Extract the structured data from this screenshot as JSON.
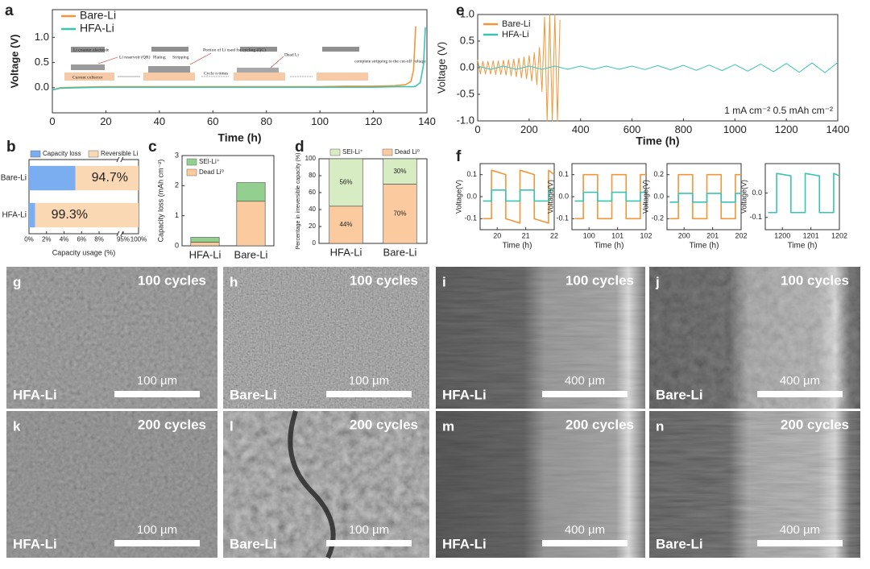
{
  "chart_data": [
    {
      "panel": "a",
      "type": "line",
      "xlabel": "Time (h)",
      "ylabel": "Voltage (V)",
      "x": [
        0,
        3,
        10,
        20,
        30,
        40,
        50,
        60,
        70,
        80,
        90,
        100,
        110,
        120,
        128,
        132,
        134,
        135,
        135.8,
        137.5,
        138.7,
        139.4
      ],
      "xlim": [
        0,
        140
      ],
      "xticks": [
        0,
        20,
        40,
        60,
        80,
        100,
        120,
        140
      ],
      "ylim": [
        -0.5,
        1.55
      ],
      "yticks": [
        {
          "value": 0,
          "label": "0.0"
        },
        {
          "value": 0.5,
          "label": "0.5"
        },
        {
          "value": 1,
          "label": "1.0"
        }
      ],
      "legend": "upper left",
      "series": [
        {
          "name": "Bare-Li",
          "color": "#f2963a",
          "values": [
            -0.05,
            0.0,
            0.01,
            0.02,
            0.02,
            0.02,
            0.02,
            0.02,
            0.02,
            0.02,
            0.02,
            0.02,
            0.03,
            0.03,
            0.04,
            0.06,
            0.12,
            0.35,
            1.22,
            null,
            null,
            null
          ]
        },
        {
          "name": "HFA-Li",
          "color": "#3cc4b2",
          "values": [
            -0.04,
            -0.01,
            0.0,
            0.01,
            0.01,
            0.01,
            0.01,
            0.01,
            0.01,
            0.01,
            0.01,
            0.01,
            0.01,
            0.01,
            0.02,
            0.02,
            0.02,
            0.02,
            0.03,
            0.1,
            0.45,
            1.2
          ]
        }
      ],
      "inset_labels": [
        "Li counter electrode",
        "Li reservoir (QR)",
        "Current collector",
        "Plating",
        "Stripping",
        "Portion of Li used for cycling (QC)",
        "Cycle n times",
        "Dead Li",
        "complete stripping to the cut-off voltage"
      ]
    },
    {
      "panel": "b",
      "type": "bar",
      "orientation": "horizontal",
      "stacked": true,
      "xlabel": "Capacity usage (%)",
      "categories": [
        "Bare-Li",
        "HFA-Li"
      ],
      "xlim": [
        0,
        100
      ],
      "axis_break": [
        10,
        95
      ],
      "xticks": [
        {
          "value": 0,
          "label": "0%"
        },
        {
          "value": 2,
          "label": "2%"
        },
        {
          "value": 4,
          "label": "4%"
        },
        {
          "value": 6,
          "label": "6%"
        },
        {
          "value": 8,
          "label": "8%"
        },
        {
          "value": 95,
          "label": "95%"
        },
        {
          "value": 100,
          "label": "100%"
        }
      ],
      "series": [
        {
          "name": "Capacity loss",
          "color": "#7aaef0",
          "values": [
            5.3,
            0.7
          ]
        },
        {
          "name": "Reversible Li",
          "color": "#fbd8b4",
          "values": [
            94.7,
            99.3
          ],
          "value_labels": [
            "94.7%",
            "99.3%"
          ]
        }
      ]
    },
    {
      "panel": "c",
      "type": "bar",
      "stacked": true,
      "ylabel": "Capacity loss (mAh cm⁻²)",
      "categories": [
        "HFA-Li",
        "Bare-Li"
      ],
      "ylim": [
        0,
        3
      ],
      "yticks": [
        0,
        1,
        2,
        3
      ],
      "series": [
        {
          "name": "Dead Li⁰",
          "color": "#fbcb9f",
          "values": [
            0.12,
            1.48
          ]
        },
        {
          "name": "SEI-Li⁺",
          "color": "#93cf8e",
          "values": [
            0.16,
            0.62
          ]
        }
      ]
    },
    {
      "panel": "d",
      "type": "bar",
      "stacked": true,
      "ylabel": "Percentage in irreversible capacity (%)",
      "categories": [
        "HFA-Li",
        "Bare-Li"
      ],
      "ylim": [
        0,
        100
      ],
      "yticks": [
        0,
        20,
        40,
        60,
        80,
        100
      ],
      "series": [
        {
          "name": "Dead Li⁰",
          "color": "#fbcb9f",
          "values": [
            44,
            70
          ],
          "value_labels": [
            "44%",
            "70%"
          ]
        },
        {
          "name": "SEI-Li⁺",
          "color": "#d7ecc2",
          "values": [
            56,
            30
          ],
          "value_labels": [
            "56%",
            "30%"
          ]
        }
      ]
    },
    {
      "panel": "e",
      "type": "line",
      "xlabel": "Time (h)",
      "ylabel": "Voltage (V)",
      "xlim": [
        0,
        1400
      ],
      "xticks": [
        0,
        200,
        400,
        600,
        800,
        1000,
        1200,
        1400
      ],
      "ylim": [
        -1,
        1
      ],
      "yticks": [
        {
          "value": -1,
          "label": "-1.0"
        },
        {
          "value": -0.5,
          "label": "-0.5"
        },
        {
          "value": 0,
          "label": "0.0"
        },
        {
          "value": 0.5,
          "label": "0.5"
        },
        {
          "value": 1,
          "label": "1.0"
        }
      ],
      "legend": "upper left",
      "annotation": "1 mA cm⁻² 0.5 mAh cm⁻²",
      "series": [
        {
          "name": "Bare-Li",
          "color": "#f2963a",
          "x": [
            0,
            10,
            20,
            30,
            40,
            50,
            60,
            70,
            80,
            90,
            100,
            110,
            120,
            130,
            140,
            150,
            160,
            170,
            180,
            190,
            200,
            210,
            220,
            230,
            240,
            250,
            260,
            270,
            280,
            290,
            300,
            310,
            320
          ],
          "values": [
            0.15,
            -0.12,
            0.12,
            -0.12,
            0.12,
            -0.12,
            0.13,
            -0.13,
            0.13,
            -0.13,
            0.14,
            -0.14,
            0.15,
            -0.15,
            0.16,
            -0.17,
            0.18,
            -0.19,
            0.2,
            -0.21,
            0.23,
            -0.25,
            0.28,
            -0.32,
            0.38,
            -0.45,
            0.95,
            -1.0,
            1.0,
            -1.0,
            1.0,
            -1.0,
            0.9
          ]
        },
        {
          "name": "HFA-Li",
          "color": "#3cc4b2",
          "x": [
            0,
            50,
            100,
            150,
            200,
            250,
            300,
            350,
            400,
            450,
            500,
            550,
            600,
            650,
            700,
            750,
            800,
            850,
            900,
            950,
            1000,
            1050,
            1100,
            1150,
            1200,
            1250,
            1300,
            1350,
            1400
          ],
          "values": [
            0.03,
            -0.03,
            0.03,
            -0.03,
            0.03,
            -0.03,
            0.03,
            -0.03,
            0.03,
            -0.03,
            0.03,
            -0.03,
            0.03,
            -0.035,
            0.04,
            -0.04,
            0.045,
            -0.05,
            0.05,
            -0.055,
            0.06,
            -0.065,
            0.07,
            -0.075,
            0.08,
            -0.085,
            0.09,
            -0.095,
            0.1
          ]
        }
      ]
    },
    {
      "panel": "f",
      "type": "line",
      "xlabel": "Time (h)",
      "ylabel": "Voltage(V)",
      "x": [
        19.5,
        19.8,
        19.8,
        20.3,
        20.3,
        20.8,
        20.8,
        21.3,
        21.3,
        21.8,
        21.8,
        22
      ],
      "xlim": [
        19.4,
        22
      ],
      "xticks": [
        20,
        21,
        22
      ],
      "ylim": [
        -0.15,
        0.15
      ],
      "yticks": [
        {
          "value": -0.1,
          "label": "-0.1"
        },
        {
          "value": 0,
          "label": "0.0"
        },
        {
          "value": 0.1,
          "label": "0.1"
        }
      ],
      "series": [
        {
          "color": "#f2963a",
          "values": [
            -0.1,
            -0.1,
            0.12,
            0.1,
            -0.1,
            -0.12,
            0.12,
            0.1,
            -0.1,
            -0.12,
            0.12,
            0.1
          ]
        },
        {
          "color": "#3cc4b2",
          "values": [
            -0.02,
            -0.02,
            0.03,
            0.03,
            -0.02,
            -0.02,
            0.03,
            0.03,
            -0.02,
            -0.02,
            0.03,
            0.03
          ]
        }
      ]
    },
    {
      "type": "line",
      "xlabel": "Time (h)",
      "ylabel": "Voltage(V)",
      "x": [
        99.5,
        99.8,
        99.8,
        100.3,
        100.3,
        100.8,
        100.8,
        101.3,
        101.3,
        101.8,
        101.8,
        102
      ],
      "xlim": [
        99.4,
        102
      ],
      "xticks": [
        100,
        101,
        102
      ],
      "ylim": [
        -0.15,
        0.15
      ],
      "yticks": [
        {
          "value": -0.1,
          "label": "-0.1"
        },
        {
          "value": 0,
          "label": "0.0"
        },
        {
          "value": 0.1,
          "label": "0.1"
        }
      ],
      "series": [
        {
          "color": "#f2963a",
          "values": [
            -0.1,
            -0.1,
            0.1,
            0.1,
            -0.1,
            -0.1,
            0.1,
            0.1,
            -0.1,
            -0.1,
            0.1,
            0.1
          ]
        },
        {
          "color": "#3cc4b2",
          "values": [
            -0.02,
            -0.02,
            0.02,
            0.02,
            -0.02,
            -0.02,
            0.02,
            0.02,
            -0.02,
            -0.02,
            0.02,
            0.02
          ]
        }
      ]
    },
    {
      "type": "line",
      "xlabel": "Time (h)",
      "ylabel": "Voltage(V)",
      "x": [
        199.5,
        199.8,
        199.8,
        200.3,
        200.3,
        200.8,
        200.8,
        201.3,
        201.3,
        201.8,
        201.8,
        202
      ],
      "xlim": [
        199.4,
        202
      ],
      "xticks": [
        200,
        201,
        202
      ],
      "ylim": [
        -0.3,
        0.3
      ],
      "yticks": [
        {
          "value": -0.2,
          "label": "-0.2"
        },
        {
          "value": 0,
          "label": "0.0"
        },
        {
          "value": 0.2,
          "label": "0.2"
        }
      ],
      "series": [
        {
          "color": "#f2963a",
          "values": [
            -0.2,
            -0.2,
            0.2,
            0.2,
            -0.2,
            -0.2,
            0.2,
            0.2,
            -0.2,
            -0.2,
            0.2,
            0.2
          ]
        },
        {
          "color": "#3cc4b2",
          "values": [
            -0.05,
            -0.05,
            0.03,
            0.03,
            -0.05,
            -0.05,
            0.03,
            0.03,
            -0.05,
            -0.05,
            0.03,
            0.03
          ]
        }
      ]
    },
    {
      "type": "line",
      "xlabel": "Time (h)",
      "ylabel": "Voltage(V)",
      "x": [
        1199.5,
        1199.8,
        1199.8,
        1200.3,
        1200.3,
        1200.8,
        1200.8,
        1201.3,
        1201.3,
        1201.8,
        1201.8,
        1202
      ],
      "xlim": [
        1199.4,
        1202
      ],
      "xticks": [
        1200,
        1201,
        1202
      ],
      "ylim": [
        -0.15,
        0.12
      ],
      "yticks": [
        {
          "value": -0.1,
          "label": "-0.1"
        },
        {
          "value": 0,
          "label": "0.0"
        }
      ],
      "series": [
        {
          "color": "#3cc4b2",
          "values": [
            -0.08,
            -0.08,
            0.08,
            0.07,
            -0.08,
            -0.08,
            0.08,
            0.07,
            -0.08,
            -0.08,
            0.08,
            0.07
          ]
        }
      ]
    }
  ],
  "sem_panels": [
    {
      "letter": "g",
      "cycles": "100 cycles",
      "scale": "100 µm",
      "sample": "HFA-Li"
    },
    {
      "letter": "h",
      "cycles": "100 cycles",
      "scale": "100 µm",
      "sample": "Bare-Li"
    },
    {
      "letter": "i",
      "cycles": "100 cycles",
      "scale": "400 µm",
      "sample": "HFA-Li"
    },
    {
      "letter": "j",
      "cycles": "100 cycles",
      "scale": "400 µm",
      "sample": "Bare-Li"
    },
    {
      "letter": "k",
      "cycles": "200 cycles",
      "scale": "100 µm",
      "sample": "HFA-Li"
    },
    {
      "letter": "l",
      "cycles": "200 cycles",
      "scale": "100 µm",
      "sample": "Bare-Li"
    },
    {
      "letter": "m",
      "cycles": "200 cycles",
      "scale": "400 µm",
      "sample": "HFA-Li"
    },
    {
      "letter": "n",
      "cycles": "200 cycles",
      "scale": "400 µm",
      "sample": "Bare-Li"
    }
  ]
}
